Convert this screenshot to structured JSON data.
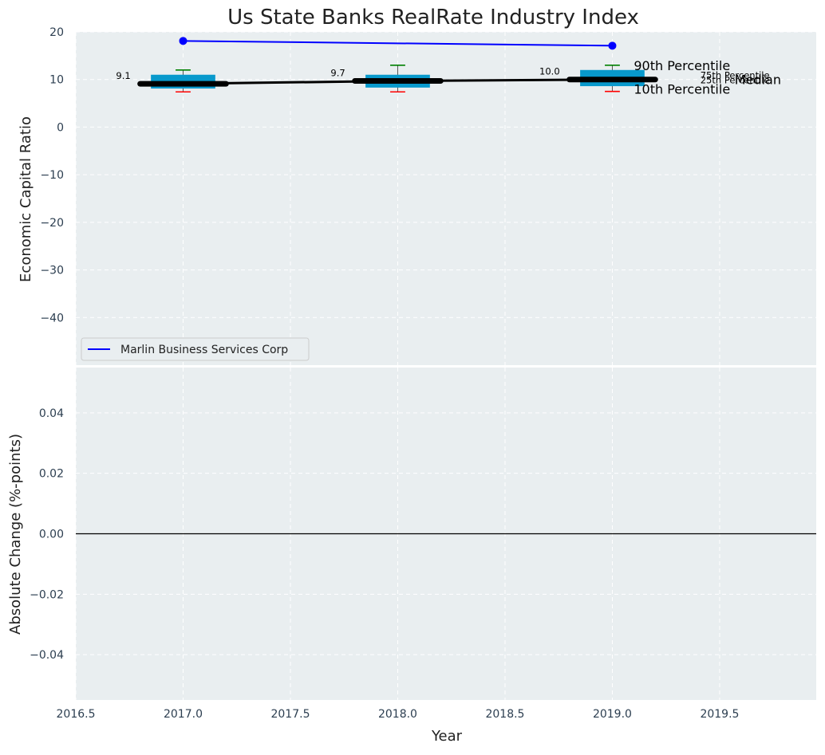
{
  "chart_data": {
    "type": "box",
    "title": "Us State Banks RealRate Industry Index",
    "xlabel": "Year",
    "colors": {
      "background": "#e9eef0",
      "box": "#0899cc",
      "median": "#000000",
      "series": "#0000ff",
      "whisker_high": "#008000",
      "whisker_low": "#ff0000",
      "percentile_label": "#0899cc"
    },
    "top_panel": {
      "ylabel": "Economic Capital Ratio",
      "ylim": [
        -50,
        20
      ],
      "yticks": [
        20,
        10,
        0,
        -10,
        -20,
        -30,
        -40
      ],
      "ytick_labels": [
        "20",
        "10",
        "0",
        "−10",
        "−20",
        "−30",
        "−40"
      ],
      "grid": true,
      "boxes": [
        {
          "year": 2017.0,
          "p10": 7.4,
          "p25": 8.1,
          "median": 9.1,
          "p75": 11.0,
          "p90": 12.0,
          "median_label": "9.1"
        },
        {
          "year": 2018.0,
          "p10": 7.4,
          "p25": 8.3,
          "median": 9.7,
          "p75": 11.0,
          "p90": 13.0,
          "median_label": "9.7"
        },
        {
          "year": 2019.0,
          "p10": 7.5,
          "p25": 8.6,
          "median": 10.0,
          "p75": 12.0,
          "p90": 13.0,
          "median_label": "10.0"
        }
      ],
      "median_line_label": "Median",
      "percentile_labels": {
        "p90": "90th Percentile",
        "p75": "75th Percentile",
        "median": "Median",
        "p25": "25th Percentile",
        "p10": "10th Percentile"
      },
      "series": [
        {
          "name": "Marlin Business Services Corp",
          "x": [
            2017,
            2019
          ],
          "y": [
            18.1,
            17.1
          ]
        }
      ],
      "legend_position": "lower-left"
    },
    "bottom_panel": {
      "ylabel": "Absolute Change (%-points)",
      "ylim": [
        -0.055,
        0.055
      ],
      "yticks": [
        0.04,
        0.02,
        0.0,
        -0.02,
        -0.04
      ],
      "ytick_labels": [
        "0.04",
        "0.02",
        "0.00",
        "−0.02",
        "−0.04"
      ],
      "zero_line": 0.0,
      "grid": true
    },
    "x_axis": {
      "xlim": [
        2016.5,
        2019.95
      ],
      "xticks": [
        2016.5,
        2017.0,
        2017.5,
        2018.0,
        2018.5,
        2019.0,
        2019.5
      ],
      "xtick_labels": [
        "2016.5",
        "2017.0",
        "2017.5",
        "2018.0",
        "2018.5",
        "2019.0",
        "2019.5"
      ]
    }
  }
}
